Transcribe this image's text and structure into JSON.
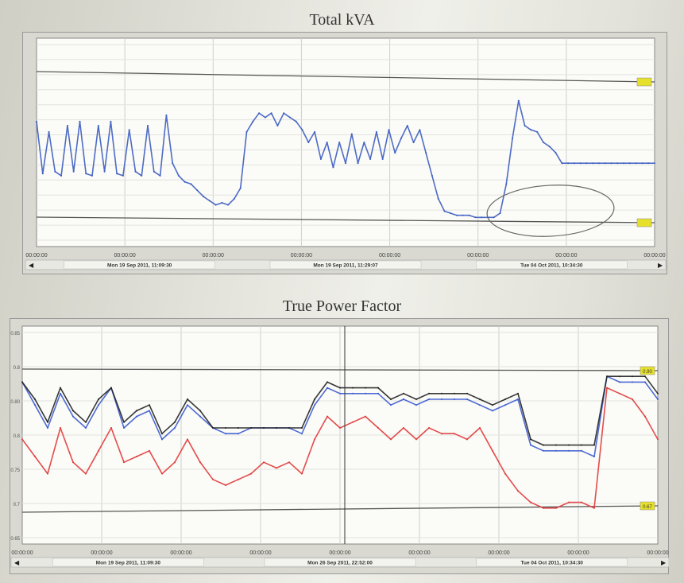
{
  "chart_data": [
    {
      "type": "line",
      "title": "Total kVA",
      "y_tick_labels": [
        "",
        "",
        "",
        "",
        "",
        "",
        "",
        "",
        "",
        "",
        "",
        "",
        "",
        ""
      ],
      "x_tick_labels": [
        "00:00:00",
        "00:00:00",
        "00:00:00",
        "00:00:00",
        "00:00:00",
        "00:00:00",
        "00:00:00",
        "00:00:00"
      ],
      "timestamps": [
        "Mon 19 Sep 2011, 11:09:30",
        "Mon 19 Sep 2011, 11:29:07",
        "Tue 04 Oct 2011, 10:34:30"
      ],
      "threshold_labels": [
        "",
        ""
      ],
      "grid": true,
      "colors": {
        "series": "#3a5cc0",
        "threshold": "#555555",
        "marker": "#e6e02a"
      },
      "series": [
        {
          "x": [
            0.0,
            0.01,
            0.02,
            0.03,
            0.04,
            0.05,
            0.06,
            0.07,
            0.08,
            0.09,
            0.1,
            0.11,
            0.12,
            0.13,
            0.14,
            0.15,
            0.16,
            0.17,
            0.18,
            0.19,
            0.2,
            0.21,
            0.22,
            0.23,
            0.24,
            0.25,
            0.26,
            0.27,
            0.28,
            0.29,
            0.3,
            0.31,
            0.32,
            0.33,
            0.34,
            0.35,
            0.36,
            0.37,
            0.38,
            0.39,
            0.4,
            0.41,
            0.42,
            0.43,
            0.44,
            0.45,
            0.46,
            0.47,
            0.48,
            0.49,
            0.5,
            0.51,
            0.52,
            0.53,
            0.54,
            0.55,
            0.56,
            0.57,
            0.58,
            0.59,
            0.6,
            0.61,
            0.62,
            0.63,
            0.64,
            0.65,
            0.66,
            0.67,
            0.68,
            0.69,
            0.7,
            0.71,
            0.72,
            0.73,
            0.74,
            0.75,
            0.76,
            0.77,
            0.78,
            0.79,
            0.8,
            0.81,
            0.82,
            0.83,
            0.84,
            0.85,
            0.86,
            0.87,
            0.88,
            0.89,
            0.9,
            0.91,
            0.92,
            0.93,
            0.94,
            0.95,
            0.96,
            0.97,
            0.98,
            0.99,
            1.0
          ],
          "values": [
            0.6,
            0.35,
            0.55,
            0.36,
            0.34,
            0.58,
            0.36,
            0.6,
            0.35,
            0.34,
            0.58,
            0.36,
            0.6,
            0.35,
            0.34,
            0.56,
            0.36,
            0.34,
            0.58,
            0.36,
            0.34,
            0.63,
            0.4,
            0.34,
            0.31,
            0.3,
            0.27,
            0.24,
            0.22,
            0.2,
            0.21,
            0.2,
            0.23,
            0.28,
            0.55,
            0.6,
            0.64,
            0.62,
            0.64,
            0.58,
            0.64,
            0.62,
            0.6,
            0.56,
            0.5,
            0.55,
            0.42,
            0.5,
            0.38,
            0.5,
            0.4,
            0.54,
            0.4,
            0.5,
            0.42,
            0.55,
            0.42,
            0.56,
            0.45,
            0.52,
            0.58,
            0.5,
            0.56,
            0.45,
            0.34,
            0.23,
            0.17,
            0.16,
            0.15,
            0.15,
            0.15,
            0.14,
            0.14,
            0.14,
            0.14,
            0.16,
            0.3,
            0.52,
            0.7,
            0.58,
            0.56,
            0.55,
            0.5,
            0.48,
            0.45,
            0.4,
            0.4,
            0.4,
            0.4,
            0.4,
            0.4,
            0.4,
            0.4,
            0.4,
            0.4,
            0.4,
            0.4,
            0.4,
            0.4,
            0.4,
            0.4
          ]
        }
      ]
    },
    {
      "type": "line",
      "title": "True Power Factor",
      "y_tick_labels": [
        "0.85",
        "0.8",
        "0.80",
        "0.8",
        "0.75",
        "0.7",
        "0.65"
      ],
      "x_tick_labels": [
        "00:00:00",
        "00:00:00",
        "00:00:00",
        "00:00:00",
        "00:00:00",
        "00:00:00",
        "00:00:00",
        "00:00:00",
        "00:00:00"
      ],
      "timestamps": [
        "Mon 19 Sep 2011, 11:09:30",
        "Mon 26 Sep 2011, 22:52:00",
        "Tue 04 Oct 2011, 10:34:30"
      ],
      "threshold_labels": [
        "0.90",
        "0.67"
      ],
      "grid": true,
      "colors": {
        "blue": "#3b5bd0",
        "black": "#222222",
        "red": "#e03a3a",
        "threshold": "#444444",
        "marker": "#e6e02a"
      },
      "series": [
        {
          "color": "blue",
          "x": [
            0.0,
            0.02,
            0.04,
            0.06,
            0.08,
            0.1,
            0.12,
            0.14,
            0.16,
            0.18,
            0.2,
            0.22,
            0.24,
            0.26,
            0.28,
            0.3,
            0.32,
            0.34,
            0.36,
            0.38,
            0.4,
            0.42,
            0.44,
            0.46,
            0.48,
            0.5,
            0.52,
            0.54,
            0.56,
            0.58,
            0.6,
            0.62,
            0.64,
            0.66,
            0.68,
            0.7,
            0.72,
            0.74,
            0.76,
            0.78,
            0.8,
            0.82,
            0.84,
            0.86,
            0.88,
            0.9,
            0.92,
            0.94,
            0.96,
            0.98,
            1.0
          ],
          "values": [
            0.88,
            0.84,
            0.8,
            0.86,
            0.82,
            0.8,
            0.84,
            0.87,
            0.8,
            0.82,
            0.83,
            0.78,
            0.8,
            0.84,
            0.82,
            0.8,
            0.79,
            0.79,
            0.8,
            0.8,
            0.8,
            0.8,
            0.79,
            0.84,
            0.87,
            0.86,
            0.86,
            0.86,
            0.86,
            0.84,
            0.85,
            0.84,
            0.85,
            0.85,
            0.85,
            0.85,
            0.84,
            0.83,
            0.84,
            0.85,
            0.77,
            0.76,
            0.76,
            0.76,
            0.76,
            0.75,
            0.89,
            0.88,
            0.88,
            0.88,
            0.85
          ]
        },
        {
          "color": "black",
          "x": [
            0.0,
            0.02,
            0.04,
            0.06,
            0.08,
            0.1,
            0.12,
            0.14,
            0.16,
            0.18,
            0.2,
            0.22,
            0.24,
            0.26,
            0.28,
            0.3,
            0.32,
            0.34,
            0.36,
            0.38,
            0.4,
            0.42,
            0.44,
            0.46,
            0.48,
            0.5,
            0.52,
            0.54,
            0.56,
            0.58,
            0.6,
            0.62,
            0.64,
            0.66,
            0.68,
            0.7,
            0.72,
            0.74,
            0.76,
            0.78,
            0.8,
            0.82,
            0.84,
            0.86,
            0.88,
            0.9,
            0.92,
            0.94,
            0.96,
            0.98,
            1.0
          ],
          "values": [
            0.88,
            0.85,
            0.81,
            0.87,
            0.83,
            0.81,
            0.85,
            0.87,
            0.81,
            0.83,
            0.84,
            0.79,
            0.81,
            0.85,
            0.83,
            0.8,
            0.8,
            0.8,
            0.8,
            0.8,
            0.8,
            0.8,
            0.8,
            0.85,
            0.88,
            0.87,
            0.87,
            0.87,
            0.87,
            0.85,
            0.86,
            0.85,
            0.86,
            0.86,
            0.86,
            0.86,
            0.85,
            0.84,
            0.85,
            0.86,
            0.78,
            0.77,
            0.77,
            0.77,
            0.77,
            0.77,
            0.89,
            0.89,
            0.89,
            0.89,
            0.86
          ]
        },
        {
          "color": "red",
          "x": [
            0.0,
            0.02,
            0.04,
            0.06,
            0.08,
            0.1,
            0.12,
            0.14,
            0.16,
            0.18,
            0.2,
            0.22,
            0.24,
            0.26,
            0.28,
            0.3,
            0.32,
            0.34,
            0.36,
            0.38,
            0.4,
            0.42,
            0.44,
            0.46,
            0.48,
            0.5,
            0.52,
            0.54,
            0.56,
            0.58,
            0.6,
            0.62,
            0.64,
            0.66,
            0.68,
            0.7,
            0.72,
            0.74,
            0.76,
            0.78,
            0.8,
            0.82,
            0.84,
            0.86,
            0.88,
            0.9,
            0.92,
            0.94,
            0.96,
            0.98,
            1.0
          ],
          "values": [
            0.78,
            0.75,
            0.72,
            0.8,
            0.74,
            0.72,
            0.76,
            0.8,
            0.74,
            0.75,
            0.76,
            0.72,
            0.74,
            0.78,
            0.74,
            0.71,
            0.7,
            0.71,
            0.72,
            0.74,
            0.73,
            0.74,
            0.72,
            0.78,
            0.82,
            0.8,
            0.81,
            0.82,
            0.8,
            0.78,
            0.8,
            0.78,
            0.8,
            0.79,
            0.79,
            0.78,
            0.8,
            0.76,
            0.72,
            0.69,
            0.67,
            0.66,
            0.66,
            0.67,
            0.67,
            0.66,
            0.87,
            0.86,
            0.85,
            0.82,
            0.78
          ]
        }
      ]
    }
  ]
}
